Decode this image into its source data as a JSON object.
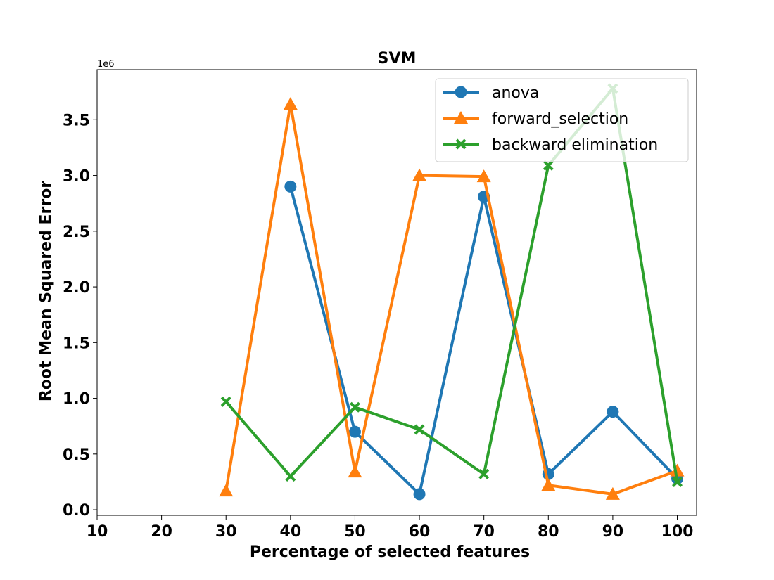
{
  "chart_data": {
    "type": "line",
    "title": "SVM",
    "xlabel": "Percentage of selected features",
    "ylabel": "Root Mean Squared Error",
    "y_offset_label": "1e6",
    "y_scale": 1000000,
    "xlim": [
      10,
      103
    ],
    "ylim": [
      -0.05,
      3.95
    ],
    "xticks": [
      10,
      20,
      30,
      40,
      50,
      60,
      70,
      80,
      90,
      100
    ],
    "xtick_labels": [
      "10",
      "20",
      "30",
      "40",
      "50",
      "60",
      "70",
      "80",
      "90",
      "100"
    ],
    "yticks": [
      0.0,
      0.5,
      1.0,
      1.5,
      2.0,
      2.5,
      3.0,
      3.5
    ],
    "ytick_labels": [
      "0.0",
      "0.5",
      "1.0",
      "1.5",
      "2.0",
      "2.5",
      "3.0",
      "3.5"
    ],
    "grid": false,
    "legend_position": "top-right",
    "series": [
      {
        "name": "anova",
        "color": "#1f77b4",
        "marker": "circle",
        "x": [
          40,
          50,
          60,
          70,
          80,
          90,
          100
        ],
        "y": [
          2.9,
          0.7,
          0.14,
          2.81,
          0.32,
          0.88,
          0.28
        ]
      },
      {
        "name": "forward_selection",
        "color": "#ff7f0e",
        "marker": "triangle",
        "x": [
          30,
          40,
          50,
          60,
          70,
          80,
          90,
          100
        ],
        "y": [
          0.17,
          3.64,
          0.34,
          3.0,
          2.99,
          0.22,
          0.14,
          0.35
        ]
      },
      {
        "name": "backward elimination",
        "color": "#2ca02c",
        "marker": "x",
        "x": [
          30,
          40,
          50,
          60,
          70,
          80,
          90,
          100
        ],
        "y": [
          0.97,
          0.3,
          0.92,
          0.72,
          0.32,
          3.09,
          3.78,
          0.25
        ]
      }
    ]
  }
}
